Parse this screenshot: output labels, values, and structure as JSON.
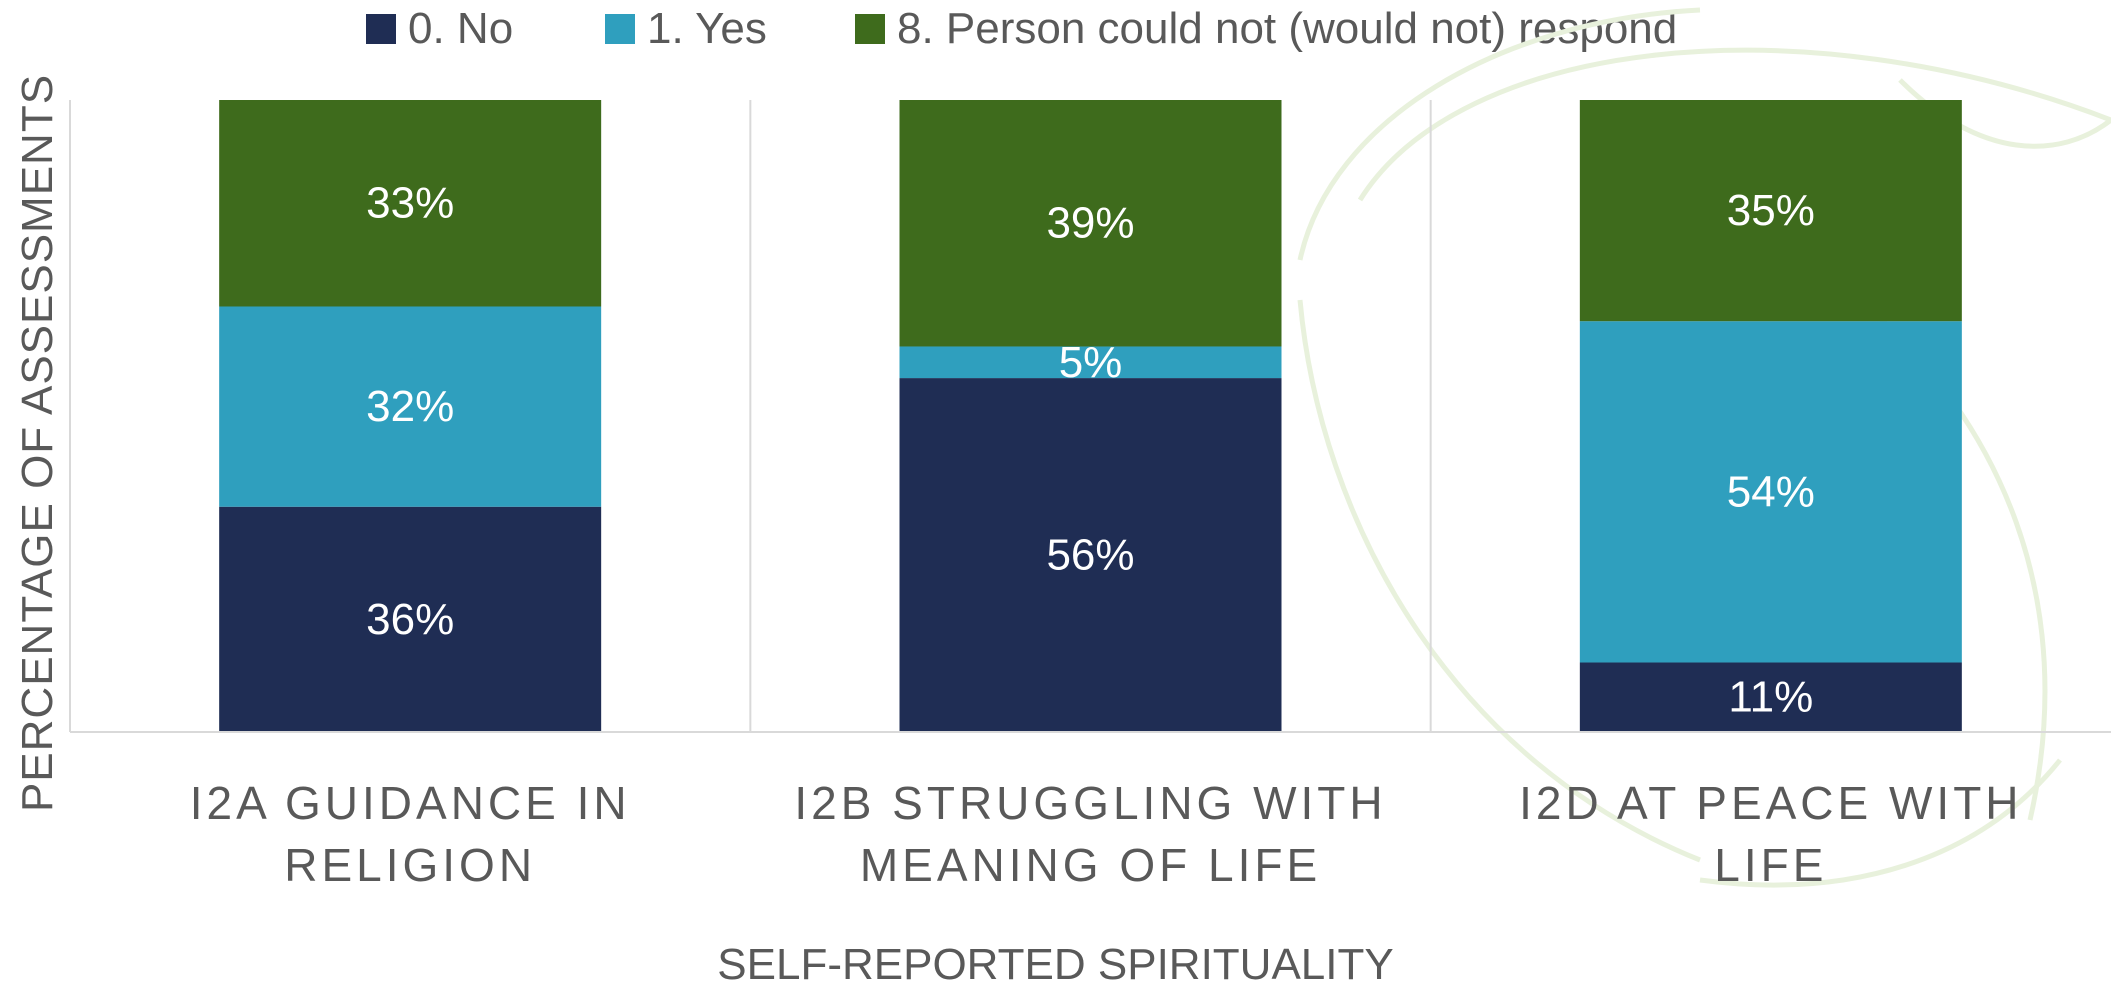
{
  "chart_data": {
    "type": "bar",
    "stacked": true,
    "categories": [
      [
        "I2A GUIDANCE IN RELIGION"
      ],
      [
        "I2B STRUGGLING WITH",
        "MEANING OF LIFE"
      ],
      [
        "I2D AT PEACE WITH LIFE"
      ]
    ],
    "series": [
      {
        "name": "0. No",
        "color": "#1f2d54",
        "values": [
          36,
          56,
          11
        ],
        "labels": [
          "36%",
          "56%",
          "11%"
        ]
      },
      {
        "name": "1. Yes",
        "color": "#2f9fbe",
        "values": [
          32,
          5,
          54
        ],
        "labels": [
          "32%",
          "5%",
          "54%"
        ]
      },
      {
        "name": "8. Person could not (would not) respond",
        "color": "#3e6b1c",
        "values": [
          33,
          39,
          35
        ],
        "labels": [
          "33%",
          "39%",
          "35%"
        ]
      }
    ],
    "xlabel": "SELF-REPORTED SPIRITUALITY",
    "ylabel": "PERCENTAGE OF ASSESSMENTS",
    "ylim": [
      0,
      100
    ],
    "legend_position": "top",
    "grid": false
  }
}
